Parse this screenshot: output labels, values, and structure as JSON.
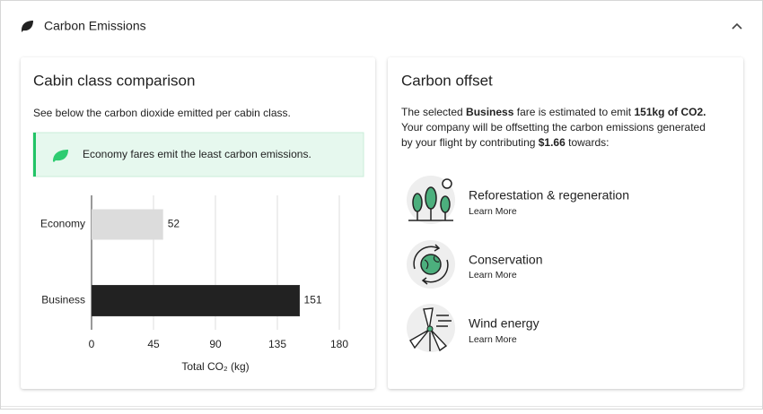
{
  "header": {
    "title": "Carbon Emissions"
  },
  "comparison": {
    "title": "Cabin class comparison",
    "subtitle": "See below the carbon dioxide emitted per cabin class.",
    "alert": "Economy fares emit the least carbon emissions.",
    "chart": {
      "type": "bar",
      "orientation": "horizontal",
      "categories": [
        "Economy",
        "Business"
      ],
      "values": [
        52,
        151
      ],
      "colors": [
        "#dcdcdc",
        "#222222"
      ],
      "xlim": [
        0,
        180
      ],
      "xticks": [
        0,
        45,
        90,
        135,
        180
      ],
      "xlabel": "Total CO₂ (kg)",
      "grid": true
    }
  },
  "offset": {
    "title": "Carbon offset",
    "description": [
      [
        {
          "text": "The selected ",
          "bold": false
        },
        {
          "text": "Business",
          "bold": true
        },
        {
          "text": " fare is estimated to emit ",
          "bold": false
        },
        {
          "text": "151kg of CO2.",
          "bold": true
        }
      ],
      [
        {
          "text": "Your company will be offsetting the carbon emissions generated",
          "bold": false
        }
      ],
      [
        {
          "text": "by your flight by contributing ",
          "bold": false
        },
        {
          "text": "$1.66",
          "bold": true
        },
        {
          "text": " towards:",
          "bold": false
        }
      ]
    ],
    "items": [
      {
        "title": "Reforestation & regeneration",
        "link": "Learn More"
      },
      {
        "title": "Conservation",
        "link": "Learn More"
      },
      {
        "title": "Wind energy",
        "link": "Learn More"
      }
    ]
  }
}
